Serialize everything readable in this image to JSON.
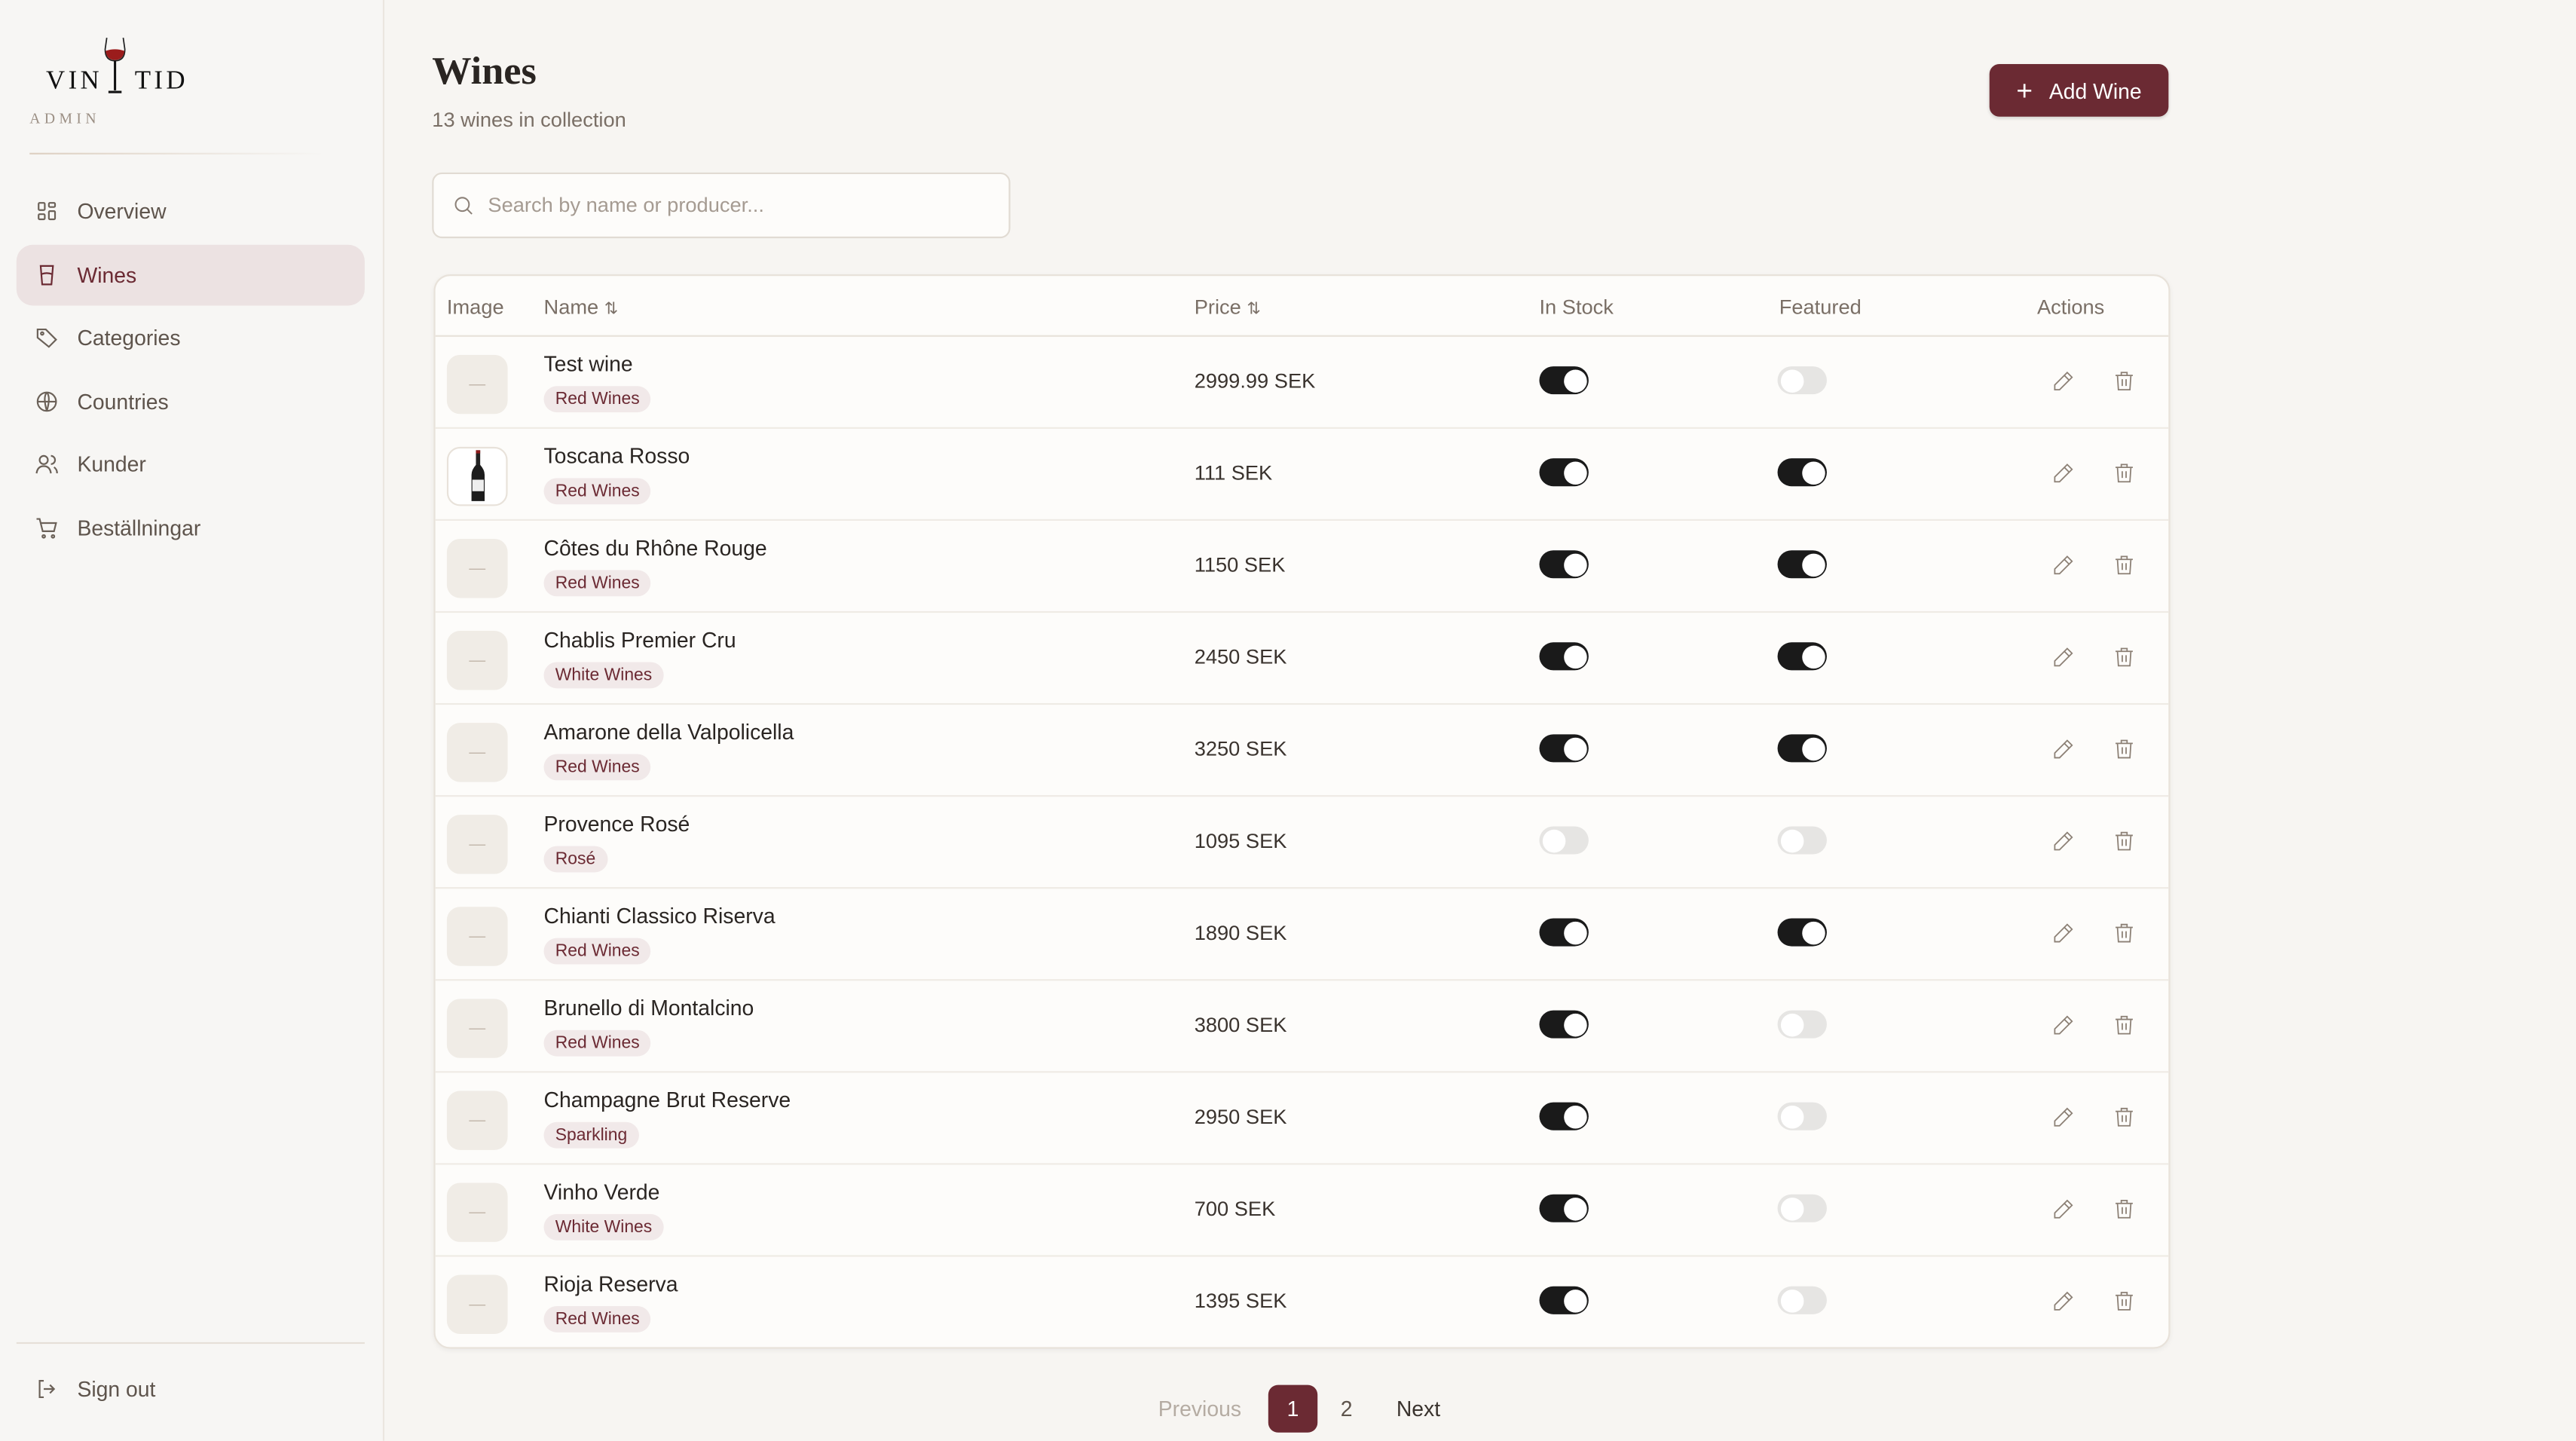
{
  "brand": {
    "logo_text_left": "VIN",
    "logo_text_right": "TID",
    "subtitle": "ADMIN"
  },
  "sidebar": {
    "items": [
      {
        "label": "Overview",
        "icon": "grid-icon"
      },
      {
        "label": "Wines",
        "icon": "glass-icon",
        "active": true
      },
      {
        "label": "Categories",
        "icon": "tag-icon"
      },
      {
        "label": "Countries",
        "icon": "globe-icon"
      },
      {
        "label": "Kunder",
        "icon": "users-icon"
      },
      {
        "label": "Beställningar",
        "icon": "cart-icon"
      }
    ],
    "sign_out": "Sign out"
  },
  "header": {
    "title": "Wines",
    "subtitle": "13 wines in collection",
    "add_label": "Add Wine"
  },
  "search": {
    "placeholder": "Search by name or producer...",
    "value": ""
  },
  "table": {
    "columns": [
      "Image",
      "Name",
      "Price",
      "In Stock",
      "Featured",
      "Actions"
    ],
    "rows": [
      {
        "name": "Test wine",
        "category": "Red Wines",
        "price": "2999.99 SEK",
        "in_stock": true,
        "featured": false,
        "image": false
      },
      {
        "name": "Toscana Rosso",
        "category": "Red Wines",
        "price": "111 SEK",
        "in_stock": true,
        "featured": true,
        "image": true
      },
      {
        "name": "Côtes du Rhône Rouge",
        "category": "Red Wines",
        "price": "1150 SEK",
        "in_stock": true,
        "featured": true,
        "image": false
      },
      {
        "name": "Chablis Premier Cru",
        "category": "White Wines",
        "price": "2450 SEK",
        "in_stock": true,
        "featured": true,
        "image": false
      },
      {
        "name": "Amarone della Valpolicella",
        "category": "Red Wines",
        "price": "3250 SEK",
        "in_stock": true,
        "featured": true,
        "image": false
      },
      {
        "name": "Provence Rosé",
        "category": "Rosé",
        "price": "1095 SEK",
        "in_stock": false,
        "featured": false,
        "image": false
      },
      {
        "name": "Chianti Classico Riserva",
        "category": "Red Wines",
        "price": "1890 SEK",
        "in_stock": true,
        "featured": true,
        "image": false
      },
      {
        "name": "Brunello di Montalcino",
        "category": "Red Wines",
        "price": "3800 SEK",
        "in_stock": true,
        "featured": false,
        "image": false
      },
      {
        "name": "Champagne Brut Reserve",
        "category": "Sparkling",
        "price": "2950 SEK",
        "in_stock": true,
        "featured": false,
        "image": false
      },
      {
        "name": "Vinho Verde",
        "category": "White Wines",
        "price": "700 SEK",
        "in_stock": true,
        "featured": false,
        "image": false
      },
      {
        "name": "Rioja Reserva",
        "category": "Red Wines",
        "price": "1395 SEK",
        "in_stock": true,
        "featured": false,
        "image": false
      }
    ]
  },
  "pagination": {
    "previous": "Previous",
    "pages": [
      "1",
      "2"
    ],
    "current": "1",
    "next": "Next"
  },
  "colors": {
    "accent": "#6b2a33",
    "toggle_on": "#1a1a1a",
    "toggle_off": "#e6e5e3"
  }
}
